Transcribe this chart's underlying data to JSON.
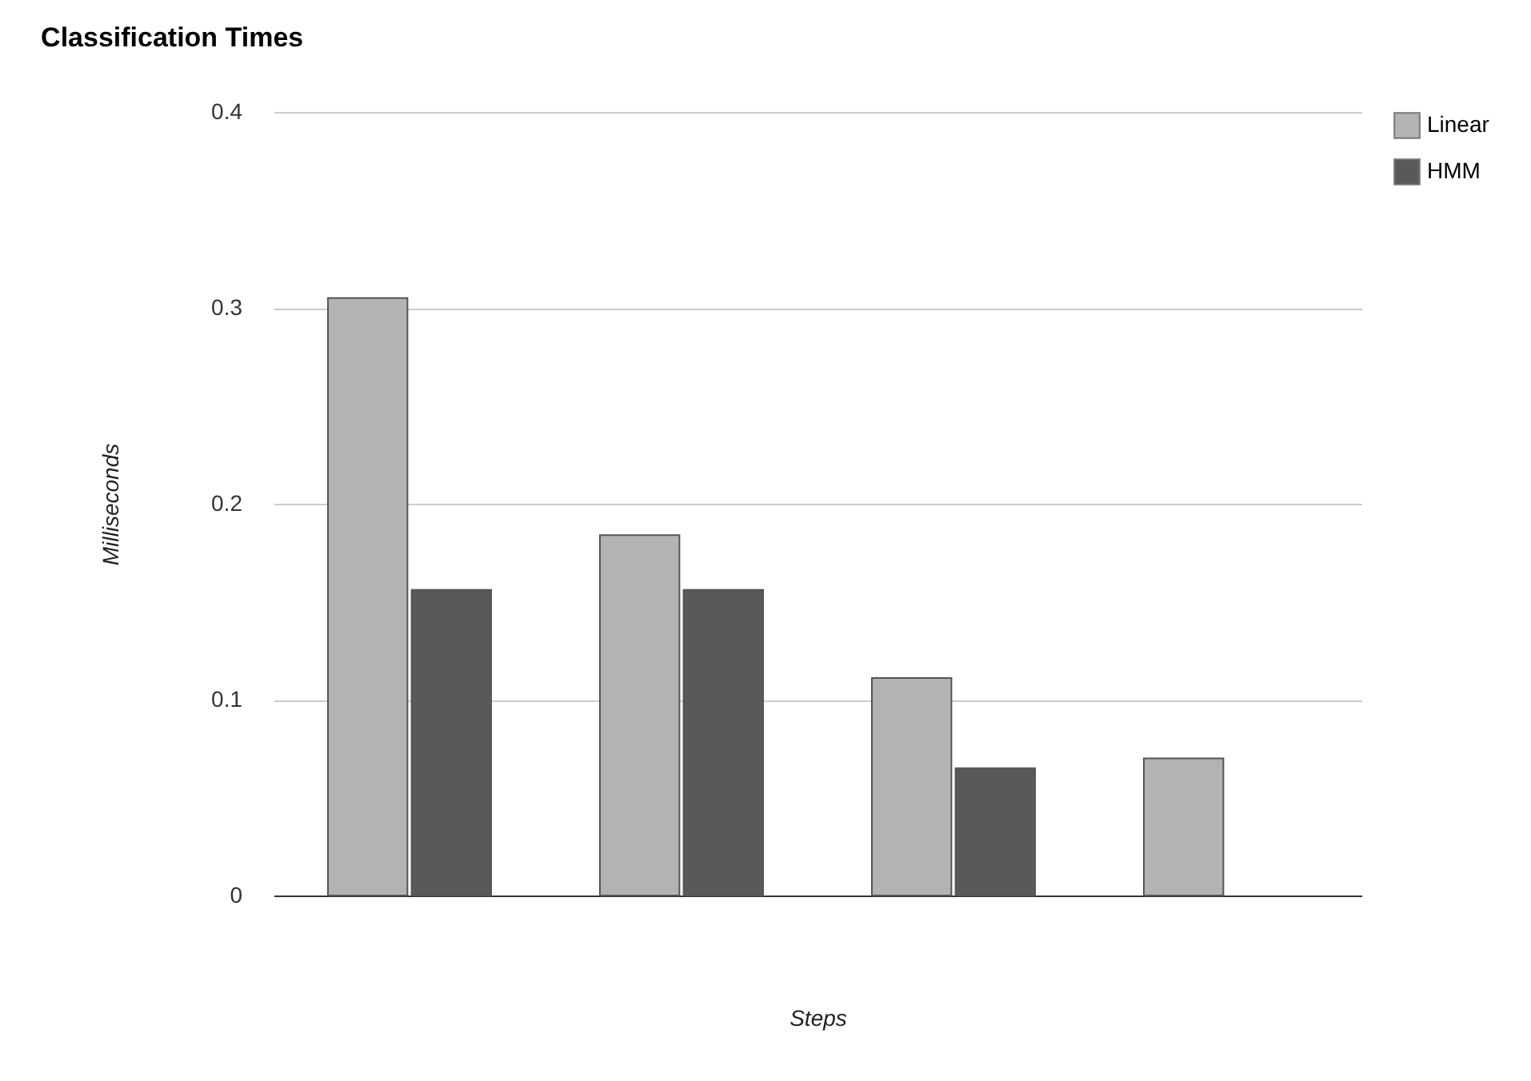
{
  "chart_data": {
    "type": "bar",
    "title": "Classification Times",
    "xlabel": "Steps",
    "ylabel": "Milliseconds",
    "categories": [
      null,
      null,
      null,
      null
    ],
    "series": [
      {
        "name": "Linear",
        "color": "#b3b3b3",
        "values": [
          0.305,
          0.184,
          0.111,
          0.07
        ]
      },
      {
        "name": "HMM",
        "color": "#595959",
        "values": [
          0.156,
          0.156,
          0.065,
          null
        ]
      }
    ],
    "ylim": [
      0,
      0.4
    ],
    "yticks": [
      0,
      0.1,
      0.2,
      0.3,
      0.4
    ],
    "grid": "y",
    "legend": "top right",
    "tick_labels": "y"
  }
}
